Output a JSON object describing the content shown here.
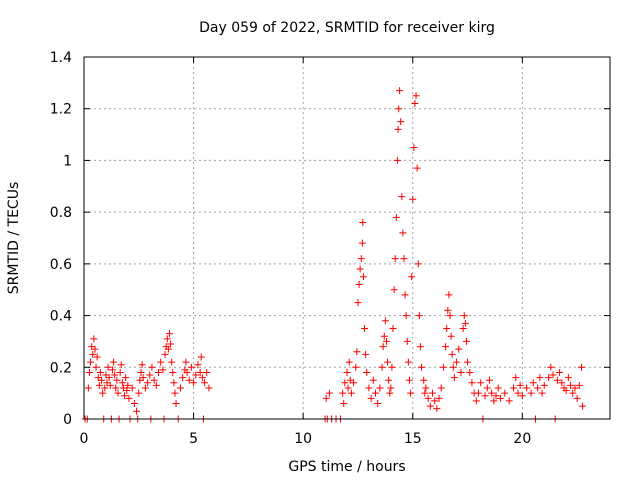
{
  "chart_data": {
    "type": "scatter",
    "title": "Day 059 of 2022, SRMTID for receiver kirg",
    "xlabel": "GPS time / hours",
    "ylabel": "SRMTID / TECUs",
    "xlim": [
      0,
      24
    ],
    "ylim": [
      0,
      1.4
    ],
    "x_ticks": [
      0,
      5,
      10,
      15,
      20
    ],
    "x_tick_labels": [
      "0",
      "5",
      "10",
      "15",
      "20"
    ],
    "y_ticks": [
      0,
      0.2,
      0.4,
      0.6,
      0.8,
      1.0,
      1.2,
      1.4
    ],
    "y_tick_labels": [
      "0",
      "0.2",
      "0.4",
      "0.6",
      "0.8",
      "1",
      "1.2",
      "1.4"
    ],
    "grid": true,
    "marker": "plus",
    "series": [
      {
        "name": "SRMTID",
        "color": "#ff0000",
        "points": [
          [
            0.05,
            0.0
          ],
          [
            0.15,
            0.0
          ],
          [
            0.2,
            0.12
          ],
          [
            0.25,
            0.18
          ],
          [
            0.3,
            0.22
          ],
          [
            0.35,
            0.28
          ],
          [
            0.4,
            0.25
          ],
          [
            0.45,
            0.31
          ],
          [
            0.5,
            0.27
          ],
          [
            0.55,
            0.2
          ],
          [
            0.6,
            0.24
          ],
          [
            0.65,
            0.16
          ],
          [
            0.7,
            0.13
          ],
          [
            0.75,
            0.18
          ],
          [
            0.8,
            0.15
          ],
          [
            0.85,
            0.1
          ],
          [
            0.9,
            0.0
          ],
          [
            0.95,
            0.12
          ],
          [
            1.0,
            0.17
          ],
          [
            1.05,
            0.14
          ],
          [
            1.1,
            0.2
          ],
          [
            1.15,
            0.16
          ],
          [
            1.2,
            0.13
          ],
          [
            1.25,
            0.0
          ],
          [
            1.3,
            0.19
          ],
          [
            1.35,
            0.22
          ],
          [
            1.4,
            0.17
          ],
          [
            1.45,
            0.12
          ],
          [
            1.5,
            0.15
          ],
          [
            1.55,
            0.1
          ],
          [
            1.6,
            0.0
          ],
          [
            1.65,
            0.18
          ],
          [
            1.7,
            0.21
          ],
          [
            1.75,
            0.14
          ],
          [
            1.8,
            0.12
          ],
          [
            1.85,
            0.09
          ],
          [
            1.9,
            0.16
          ],
          [
            1.95,
            0.11
          ],
          [
            2.0,
            0.13
          ],
          [
            2.05,
            0.08
          ],
          [
            2.1,
            0.0
          ],
          [
            2.2,
            0.12
          ],
          [
            2.3,
            0.06
          ],
          [
            2.4,
            0.03
          ],
          [
            2.45,
            0.0
          ],
          [
            2.5,
            0.1
          ],
          [
            2.55,
            0.15
          ],
          [
            2.6,
            0.18
          ],
          [
            2.65,
            0.21
          ],
          [
            2.7,
            0.16
          ],
          [
            2.8,
            0.12
          ],
          [
            2.9,
            0.14
          ],
          [
            3.0,
            0.17
          ],
          [
            3.05,
            0.0
          ],
          [
            3.1,
            0.2
          ],
          [
            3.2,
            0.15
          ],
          [
            3.3,
            0.13
          ],
          [
            3.4,
            0.18
          ],
          [
            3.5,
            0.22
          ],
          [
            3.6,
            0.19
          ],
          [
            3.65,
            0.0
          ],
          [
            3.7,
            0.25
          ],
          [
            3.75,
            0.28
          ],
          [
            3.8,
            0.31
          ],
          [
            3.85,
            0.27
          ],
          [
            3.9,
            0.33
          ],
          [
            3.95,
            0.29
          ],
          [
            4.0,
            0.22
          ],
          [
            4.05,
            0.18
          ],
          [
            4.1,
            0.14
          ],
          [
            4.15,
            0.1
          ],
          [
            4.2,
            0.06
          ],
          [
            4.3,
            0.0
          ],
          [
            4.4,
            0.12
          ],
          [
            4.5,
            0.16
          ],
          [
            4.6,
            0.19
          ],
          [
            4.65,
            0.22
          ],
          [
            4.7,
            0.18
          ],
          [
            4.8,
            0.15
          ],
          [
            4.9,
            0.2
          ],
          [
            5.0,
            0.14
          ],
          [
            5.1,
            0.17
          ],
          [
            5.2,
            0.21
          ],
          [
            5.3,
            0.18
          ],
          [
            5.35,
            0.24
          ],
          [
            5.4,
            0.16
          ],
          [
            5.45,
            0.0
          ],
          [
            5.5,
            0.14
          ],
          [
            5.6,
            0.18
          ],
          [
            5.7,
            0.12
          ],
          [
            11.0,
            0.0
          ],
          [
            11.05,
            0.08
          ],
          [
            11.1,
            0.0
          ],
          [
            11.2,
            0.1
          ],
          [
            11.3,
            0.0
          ],
          [
            11.5,
            0.0
          ],
          [
            11.7,
            0.0
          ],
          [
            11.8,
            0.1
          ],
          [
            11.85,
            0.06
          ],
          [
            11.9,
            0.14
          ],
          [
            12.0,
            0.18
          ],
          [
            12.05,
            0.12
          ],
          [
            12.1,
            0.22
          ],
          [
            12.15,
            0.15
          ],
          [
            12.2,
            0.1
          ],
          [
            12.3,
            0.14
          ],
          [
            12.4,
            0.2
          ],
          [
            12.45,
            0.26
          ],
          [
            12.5,
            0.45
          ],
          [
            12.55,
            0.52
          ],
          [
            12.6,
            0.58
          ],
          [
            12.65,
            0.62
          ],
          [
            12.7,
            0.68
          ],
          [
            12.72,
            0.76
          ],
          [
            12.75,
            0.55
          ],
          [
            12.8,
            0.35
          ],
          [
            12.85,
            0.25
          ],
          [
            12.9,
            0.18
          ],
          [
            13.0,
            0.12
          ],
          [
            13.1,
            0.08
          ],
          [
            13.2,
            0.15
          ],
          [
            13.3,
            0.1
          ],
          [
            13.4,
            0.06
          ],
          [
            13.5,
            0.12
          ],
          [
            13.6,
            0.2
          ],
          [
            13.65,
            0.28
          ],
          [
            13.7,
            0.32
          ],
          [
            13.75,
            0.38
          ],
          [
            13.8,
            0.3
          ],
          [
            13.85,
            0.22
          ],
          [
            13.9,
            0.15
          ],
          [
            13.95,
            0.1
          ],
          [
            14.0,
            0.12
          ],
          [
            14.05,
            0.2
          ],
          [
            14.1,
            0.35
          ],
          [
            14.15,
            0.5
          ],
          [
            14.2,
            0.62
          ],
          [
            14.25,
            0.78
          ],
          [
            14.3,
            1.0
          ],
          [
            14.33,
            1.12
          ],
          [
            14.36,
            1.2
          ],
          [
            14.4,
            1.27
          ],
          [
            14.45,
            1.15
          ],
          [
            14.5,
            0.86
          ],
          [
            14.55,
            0.72
          ],
          [
            14.6,
            0.62
          ],
          [
            14.65,
            0.48
          ],
          [
            14.7,
            0.4
          ],
          [
            14.75,
            0.3
          ],
          [
            14.8,
            0.22
          ],
          [
            14.85,
            0.15
          ],
          [
            14.9,
            0.1
          ],
          [
            14.95,
            0.55
          ],
          [
            15.0,
            0.85
          ],
          [
            15.05,
            1.05
          ],
          [
            15.1,
            1.22
          ],
          [
            15.15,
            1.25
          ],
          [
            15.2,
            0.97
          ],
          [
            15.25,
            0.6
          ],
          [
            15.3,
            0.4
          ],
          [
            15.35,
            0.28
          ],
          [
            15.4,
            0.2
          ],
          [
            15.5,
            0.15
          ],
          [
            15.55,
            0.1
          ],
          [
            15.6,
            0.12
          ],
          [
            15.7,
            0.08
          ],
          [
            15.8,
            0.05
          ],
          [
            15.9,
            0.1
          ],
          [
            16.0,
            0.07
          ],
          [
            16.1,
            0.04
          ],
          [
            16.2,
            0.08
          ],
          [
            16.3,
            0.12
          ],
          [
            16.4,
            0.2
          ],
          [
            16.5,
            0.28
          ],
          [
            16.55,
            0.35
          ],
          [
            16.6,
            0.42
          ],
          [
            16.65,
            0.48
          ],
          [
            16.7,
            0.4
          ],
          [
            16.75,
            0.32
          ],
          [
            16.8,
            0.25
          ],
          [
            16.85,
            0.2
          ],
          [
            16.9,
            0.16
          ],
          [
            17.0,
            0.22
          ],
          [
            17.1,
            0.27
          ],
          [
            17.2,
            0.18
          ],
          [
            17.3,
            0.35
          ],
          [
            17.35,
            0.4
          ],
          [
            17.4,
            0.37
          ],
          [
            17.45,
            0.3
          ],
          [
            17.5,
            0.22
          ],
          [
            17.6,
            0.18
          ],
          [
            17.7,
            0.14
          ],
          [
            17.8,
            0.1
          ],
          [
            17.9,
            0.07
          ],
          [
            18.0,
            0.1
          ],
          [
            18.1,
            0.14
          ],
          [
            18.2,
            0.0
          ],
          [
            18.3,
            0.09
          ],
          [
            18.4,
            0.12
          ],
          [
            18.5,
            0.15
          ],
          [
            18.6,
            0.1
          ],
          [
            18.7,
            0.07
          ],
          [
            18.8,
            0.09
          ],
          [
            18.9,
            0.12
          ],
          [
            19.0,
            0.08
          ],
          [
            19.2,
            0.1
          ],
          [
            19.4,
            0.07
          ],
          [
            19.6,
            0.12
          ],
          [
            19.7,
            0.16
          ],
          [
            19.8,
            0.1
          ],
          [
            19.9,
            0.13
          ],
          [
            20.0,
            0.09
          ],
          [
            20.2,
            0.12
          ],
          [
            20.4,
            0.1
          ],
          [
            20.5,
            0.14
          ],
          [
            20.6,
            0.0
          ],
          [
            20.7,
            0.12
          ],
          [
            20.8,
            0.16
          ],
          [
            20.9,
            0.1
          ],
          [
            21.0,
            0.13
          ],
          [
            21.2,
            0.16
          ],
          [
            21.3,
            0.2
          ],
          [
            21.4,
            0.17
          ],
          [
            21.5,
            0.0
          ],
          [
            21.6,
            0.15
          ],
          [
            21.7,
            0.18
          ],
          [
            21.8,
            0.14
          ],
          [
            21.9,
            0.12
          ],
          [
            22.0,
            0.11
          ],
          [
            22.1,
            0.16
          ],
          [
            22.2,
            0.13
          ],
          [
            22.3,
            0.1
          ],
          [
            22.4,
            0.12
          ],
          [
            22.5,
            0.08
          ],
          [
            22.6,
            0.13
          ],
          [
            22.7,
            0.2
          ],
          [
            22.75,
            0.05
          ]
        ]
      }
    ]
  }
}
